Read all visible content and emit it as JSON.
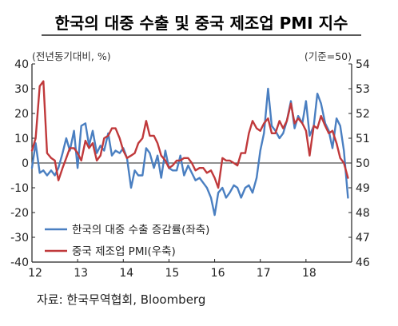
{
  "chart_data": {
    "type": "line",
    "title": "한국의 대중 수출 및 중국 제조업 PMI 지수",
    "left_unit": "(전년동기대비, %)",
    "right_unit": "(기준=50)",
    "source": "자료: 한국무역협회, Bloomberg",
    "x_ticks": [
      "12",
      "13",
      "14",
      "15",
      "16",
      "17",
      "18"
    ],
    "x_range": [
      2012,
      2019
    ],
    "y_left": {
      "range": [
        -40,
        40
      ],
      "ticks": [
        40,
        30,
        20,
        10,
        0,
        -10,
        -20,
        -30,
        -40
      ]
    },
    "y_right": {
      "range": [
        46,
        54
      ],
      "ticks": [
        54,
        53,
        52,
        51,
        50,
        49,
        48,
        47,
        46
      ]
    },
    "reference_line": {
      "axis": "left",
      "value": 0
    },
    "legend_position": "bottom-left",
    "series": [
      {
        "name": "한국의 대중 수출 증감률(좌축)",
        "axis": "left",
        "color": "#4a7fc1",
        "x": [
          2012.0,
          2012.08,
          2012.17,
          2012.25,
          2012.33,
          2012.42,
          2012.5,
          2012.58,
          2012.67,
          2012.75,
          2012.83,
          2012.92,
          2013.0,
          2013.08,
          2013.17,
          2013.25,
          2013.33,
          2013.42,
          2013.5,
          2013.58,
          2013.67,
          2013.75,
          2013.83,
          2013.92,
          2014.0,
          2014.08,
          2014.17,
          2014.25,
          2014.33,
          2014.42,
          2014.5,
          2014.58,
          2014.67,
          2014.75,
          2014.83,
          2014.92,
          2015.0,
          2015.08,
          2015.17,
          2015.25,
          2015.33,
          2015.42,
          2015.5,
          2015.58,
          2015.67,
          2015.75,
          2015.83,
          2015.92,
          2016.0,
          2016.08,
          2016.17,
          2016.25,
          2016.33,
          2016.42,
          2016.5,
          2016.58,
          2016.67,
          2016.75,
          2016.83,
          2016.92,
          2017.0,
          2017.08,
          2017.17,
          2017.25,
          2017.33,
          2017.42,
          2017.5,
          2017.58,
          2017.67,
          2017.75,
          2017.83,
          2017.92,
          2018.0,
          2018.08,
          2018.17,
          2018.25,
          2018.33,
          2018.42,
          2018.5,
          2018.58,
          2018.67,
          2018.75,
          2018.83,
          2018.92
        ],
        "values": [
          -2,
          8,
          -4,
          -3,
          -5,
          -3,
          -5,
          -2,
          4,
          10,
          5,
          13,
          -2,
          15,
          16,
          7,
          13,
          4,
          7,
          5,
          12,
          3,
          5,
          4,
          6,
          2,
          -10,
          -3,
          -5,
          -5,
          6,
          4,
          -2,
          3,
          -6,
          5,
          -2,
          -3,
          -3,
          3,
          -5,
          -1,
          -4,
          -7,
          -6,
          -8,
          -10,
          -14,
          -21,
          -12,
          -10,
          -14,
          -12,
          -9,
          -10,
          -14,
          -10,
          -9,
          -12,
          -6,
          5,
          12,
          30,
          15,
          13,
          10,
          12,
          17,
          25,
          14,
          19,
          16,
          25,
          11,
          15,
          28,
          24,
          16,
          13,
          6,
          18,
          15,
          5,
          -14
        ]
      },
      {
        "name": "중국 제조업 PMI(우축)",
        "axis": "right",
        "color": "#c0393b",
        "x": [
          2012.0,
          2012.08,
          2012.17,
          2012.25,
          2012.33,
          2012.42,
          2012.5,
          2012.58,
          2012.67,
          2012.75,
          2012.83,
          2012.92,
          2013.0,
          2013.08,
          2013.17,
          2013.25,
          2013.33,
          2013.42,
          2013.5,
          2013.58,
          2013.67,
          2013.75,
          2013.83,
          2013.92,
          2014.0,
          2014.08,
          2014.17,
          2014.25,
          2014.33,
          2014.42,
          2014.5,
          2014.58,
          2014.67,
          2014.75,
          2014.83,
          2014.92,
          2015.0,
          2015.08,
          2015.17,
          2015.25,
          2015.33,
          2015.42,
          2015.5,
          2015.58,
          2015.67,
          2015.75,
          2015.83,
          2015.92,
          2016.0,
          2016.08,
          2016.17,
          2016.25,
          2016.33,
          2016.42,
          2016.5,
          2016.58,
          2016.67,
          2016.75,
          2016.83,
          2016.92,
          2017.0,
          2017.08,
          2017.17,
          2017.25,
          2017.33,
          2017.42,
          2017.5,
          2017.58,
          2017.67,
          2017.75,
          2017.83,
          2017.92,
          2018.0,
          2018.08,
          2018.17,
          2018.25,
          2018.33,
          2018.42,
          2018.5,
          2018.58,
          2018.67,
          2018.75,
          2018.83,
          2018.92
        ],
        "values": [
          50.5,
          51.0,
          53.1,
          53.3,
          50.4,
          50.2,
          50.1,
          49.3,
          49.8,
          50.2,
          50.6,
          50.6,
          50.4,
          50.1,
          50.9,
          50.6,
          50.8,
          50.1,
          50.3,
          51.0,
          51.1,
          51.4,
          51.4,
          51.0,
          50.5,
          50.2,
          50.3,
          50.4,
          50.8,
          51.0,
          51.7,
          51.1,
          51.1,
          50.8,
          50.3,
          50.1,
          49.8,
          49.9,
          50.1,
          50.1,
          50.2,
          50.2,
          50.0,
          49.7,
          49.8,
          49.8,
          49.6,
          49.7,
          49.4,
          49.0,
          50.2,
          50.1,
          50.1,
          50.0,
          49.9,
          50.4,
          50.4,
          51.2,
          51.7,
          51.4,
          51.3,
          51.6,
          51.8,
          51.2,
          51.2,
          51.7,
          51.4,
          51.7,
          52.4,
          51.6,
          51.8,
          51.6,
          51.3,
          50.3,
          51.5,
          51.4,
          51.9,
          51.5,
          51.2,
          51.3,
          50.8,
          50.2,
          50.0,
          49.4
        ]
      }
    ]
  }
}
